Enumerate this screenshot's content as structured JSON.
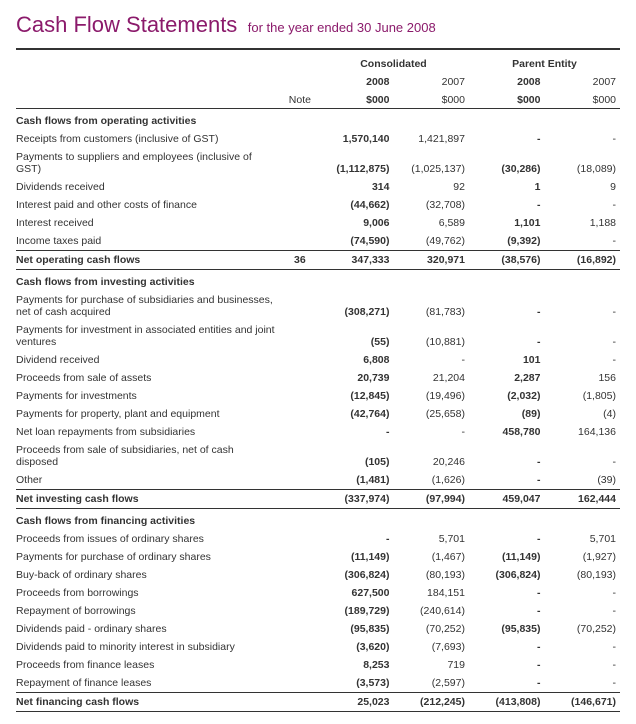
{
  "title": "Cash Flow Statements",
  "subtitle": "for the year ended 30 June 2008",
  "columns": {
    "note_label": "Note",
    "group1": "Consolidated",
    "group2": "Parent Entity",
    "y2008": "2008",
    "y2007": "2007",
    "unit": "$000"
  },
  "sections": [
    {
      "heading": "Cash flows from operating activities",
      "rows": [
        {
          "label": "Receipts from customers (inclusive of GST)",
          "c08": "1,570,140",
          "c07": "1,421,897",
          "p08": "-",
          "p07": "-"
        },
        {
          "label": "Payments to suppliers and employees (inclusive of GST)",
          "c08": "(1,112,875)",
          "c07": "(1,025,137)",
          "p08": "(30,286)",
          "p07": "(18,089)"
        },
        {
          "label": "Dividends received",
          "c08": "314",
          "c07": "92",
          "p08": "1",
          "p07": "9"
        },
        {
          "label": "Interest paid and other costs of finance",
          "c08": "(44,662)",
          "c07": "(32,708)",
          "p08": "-",
          "p07": "-"
        },
        {
          "label": "Interest received",
          "c08": "9,006",
          "c07": "6,589",
          "p08": "1,101",
          "p07": "1,188"
        },
        {
          "label": "Income taxes paid",
          "c08": "(74,590)",
          "c07": "(49,762)",
          "p08": "(9,392)",
          "p07": "-"
        }
      ],
      "total": {
        "label": "Net operating cash flows",
        "note": "36",
        "c08": "347,333",
        "c07": "320,971",
        "p08": "(38,576)",
        "p07": "(16,892)"
      }
    },
    {
      "heading": "Cash flows from investing activities",
      "rows": [
        {
          "label": "Payments for purchase of subsidiaries and businesses, net of cash acquired",
          "c08": "(308,271)",
          "c07": "(81,783)",
          "p08": "-",
          "p07": "-"
        },
        {
          "label": "Payments for investment in associated entities and joint ventures",
          "c08": "(55)",
          "c07": "(10,881)",
          "p08": "-",
          "p07": "-"
        },
        {
          "label": "Dividend received",
          "c08": "6,808",
          "c07": "-",
          "p08": "101",
          "p07": "-"
        },
        {
          "label": "Proceeds from sale of assets",
          "c08": "20,739",
          "c07": "21,204",
          "p08": "2,287",
          "p07": "156"
        },
        {
          "label": "Payments for investments",
          "c08": "(12,845)",
          "c07": "(19,496)",
          "p08": "(2,032)",
          "p07": "(1,805)"
        },
        {
          "label": "Payments for property, plant and equipment",
          "c08": "(42,764)",
          "c07": "(25,658)",
          "p08": "(89)",
          "p07": "(4)"
        },
        {
          "label": "Net loan repayments from subsidiaries",
          "c08": "-",
          "c07": "-",
          "p08": "458,780",
          "p07": "164,136"
        },
        {
          "label": "Proceeds from sale of subsidiaries, net of cash disposed",
          "c08": "(105)",
          "c07": "20,246",
          "p08": "-",
          "p07": "-"
        },
        {
          "label": "Other",
          "c08": "(1,481)",
          "c07": "(1,626)",
          "p08": "-",
          "p07": "(39)"
        }
      ],
      "total": {
        "label": "Net investing cash flows",
        "note": "",
        "c08": "(337,974)",
        "c07": "(97,994)",
        "p08": "459,047",
        "p07": "162,444"
      }
    },
    {
      "heading": "Cash flows from financing activities",
      "rows": [
        {
          "label": "Proceeds from issues of ordinary shares",
          "c08": "-",
          "c07": "5,701",
          "p08": "-",
          "p07": "5,701"
        },
        {
          "label": "Payments for purchase of ordinary shares",
          "c08": "(11,149)",
          "c07": "(1,467)",
          "p08": "(11,149)",
          "p07": "(1,927)"
        },
        {
          "label": "Buy-back of ordinary shares",
          "c08": "(306,824)",
          "c07": "(80,193)",
          "p08": "(306,824)",
          "p07": "(80,193)"
        },
        {
          "label": "Proceeds from borrowings",
          "c08": "627,500",
          "c07": "184,151",
          "p08": "-",
          "p07": "-"
        },
        {
          "label": "Repayment of borrowings",
          "c08": "(189,729)",
          "c07": "(240,614)",
          "p08": "-",
          "p07": "-"
        },
        {
          "label": "Dividends paid - ordinary shares",
          "c08": "(95,835)",
          "c07": "(70,252)",
          "p08": "(95,835)",
          "p07": "(70,252)"
        },
        {
          "label": "Dividends paid to minority interest in subsidiary",
          "c08": "(3,620)",
          "c07": "(7,693)",
          "p08": "-",
          "p07": "-"
        },
        {
          "label": "Proceeds from finance leases",
          "c08": "8,253",
          "c07": "719",
          "p08": "-",
          "p07": "-"
        },
        {
          "label": "Repayment of finance leases",
          "c08": "(3,573)",
          "c07": "(2,597)",
          "p08": "-",
          "p07": "-"
        }
      ],
      "total": {
        "label": "Net financing cash flows",
        "note": "",
        "c08": "25,023",
        "c07": "(212,245)",
        "p08": "(413,808)",
        "p07": "(146,671)"
      }
    }
  ]
}
